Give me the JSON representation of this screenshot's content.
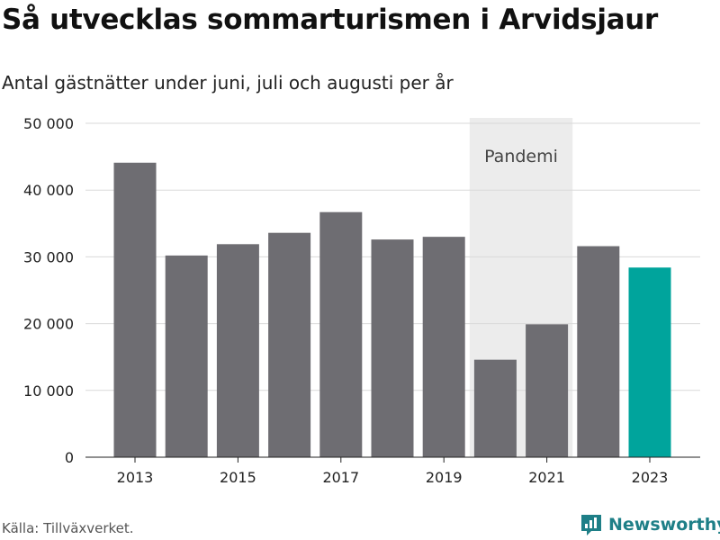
{
  "chart_data": {
    "type": "bar",
    "title": "Så utvecklas sommarturismen i Arvidsjaur",
    "subtitle": "Antal gästnätter under juni, juli och augusti per år",
    "categories": [
      2013,
      2014,
      2015,
      2016,
      2017,
      2018,
      2019,
      2020,
      2021,
      2022,
      2023
    ],
    "values": [
      44100,
      30200,
      31900,
      33600,
      36700,
      32600,
      33000,
      14600,
      19900,
      31600,
      28400
    ],
    "highlight_category": 2023,
    "bar_color": "#6e6d72",
    "highlight_color": "#00a49c",
    "ylim": [
      0,
      50000
    ],
    "yticks": [
      0,
      10000,
      20000,
      30000,
      40000,
      50000
    ],
    "ytick_labels": [
      "0",
      "10 000",
      "20 000",
      "30 000",
      "40 000",
      "50 000"
    ],
    "xticks": [
      2013,
      2015,
      2017,
      2019,
      2021,
      2023
    ],
    "xtick_labels": [
      "2013",
      "2015",
      "2017",
      "2019",
      "2021",
      "2023"
    ],
    "grid": true,
    "annotation_band": {
      "label": "Pandemi",
      "from": 2020,
      "to": 2021,
      "color": "#ececec"
    }
  },
  "footer": {
    "source": "Källa: Tillväxverket.",
    "brand": "Newsworthy",
    "brand_color": "#1e7f87"
  }
}
